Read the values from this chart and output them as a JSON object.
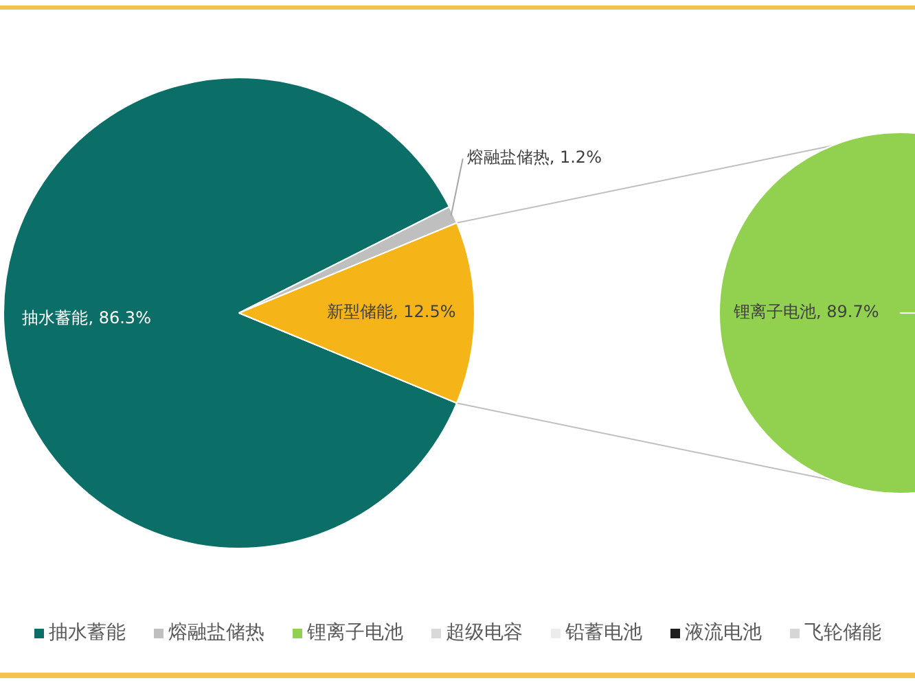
{
  "chart_data": [
    {
      "type": "pie",
      "categories": [
        "抽水蓄能",
        "熔融盐储热",
        "新型储能"
      ],
      "values": [
        86.3,
        1.2,
        12.5
      ],
      "colors": [
        "#0b6e67",
        "#bfbfbf",
        "#f5b417"
      ],
      "value_labels": [
        ", 86.3%",
        ", 1.2%",
        ", 12.5%"
      ],
      "legend": "bottom"
    },
    {
      "type": "pie",
      "categories": [
        "锂离子电池",
        "超级电容",
        "铅蓄电池",
        "液流电池",
        "飞轮储能"
      ],
      "values": [
        89.7,
        null,
        null,
        null,
        null
      ],
      "colors": [
        "#92d050",
        "#d9d9d9",
        "#ececec",
        "#1f1f1f",
        "#d6d6d6"
      ],
      "value_labels": [
        ", 89.7%",
        null,
        null,
        null,
        null
      ],
      "legend": "bottom"
    }
  ]
}
